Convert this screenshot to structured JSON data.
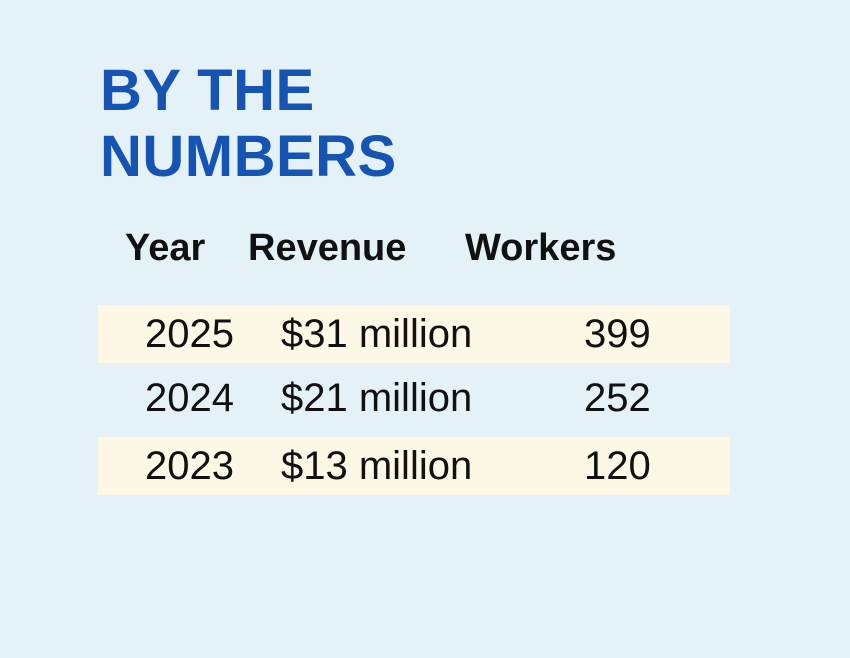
{
  "chart_data": {
    "type": "table",
    "title": "BY THE NUMBERS",
    "title_lines": [
      "BY THE",
      "NUMBERS"
    ],
    "columns": [
      "Year",
      "Revenue",
      "Workers"
    ],
    "rows": [
      {
        "year": "2025",
        "revenue": "$31 million",
        "workers": "399"
      },
      {
        "year": "2024",
        "revenue": "$21 million",
        "workers": "252"
      },
      {
        "year": "2023",
        "revenue": "$13 million",
        "workers": "120"
      }
    ],
    "revenue_millions_usd": [
      31,
      21,
      13
    ],
    "workers": [
      399,
      252,
      120
    ],
    "years": [
      2025,
      2024,
      2023
    ]
  },
  "colors": {
    "background": "#e4f2f8",
    "title": "#1554b3",
    "row_shade": "#fdf7e6",
    "text": "#111111"
  }
}
